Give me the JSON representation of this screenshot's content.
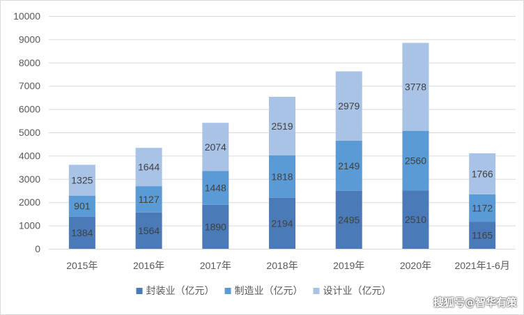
{
  "chart_data": {
    "type": "bar",
    "stacked": true,
    "categories": [
      "2015年",
      "2016年",
      "2017年",
      "2018年",
      "2019年",
      "2020年",
      "2021年1-6月"
    ],
    "series": [
      {
        "name": "封装业（亿元）",
        "values": [
          1384,
          1564,
          1890,
          2194,
          2495,
          2510,
          1165
        ],
        "color": "#4a7ab8"
      },
      {
        "name": "制造业（亿元）",
        "values": [
          901,
          1127,
          1448,
          1818,
          2149,
          2560,
          1172
        ],
        "color": "#5b9bd5"
      },
      {
        "name": "设计业（亿元）",
        "values": [
          1325,
          1644,
          2074,
          2519,
          2979,
          3778,
          1766
        ],
        "color": "#a9c3e6"
      }
    ],
    "yticks": [
      "0",
      "1000",
      "2000",
      "3000",
      "4000",
      "5000",
      "6000",
      "7000",
      "8000",
      "9000",
      "10000"
    ],
    "ylim": [
      0,
      10000
    ],
    "grid": true,
    "legend": "bottom",
    "title": "",
    "xlabel": "",
    "ylabel": ""
  },
  "watermark": "搜狐号@智华有策"
}
